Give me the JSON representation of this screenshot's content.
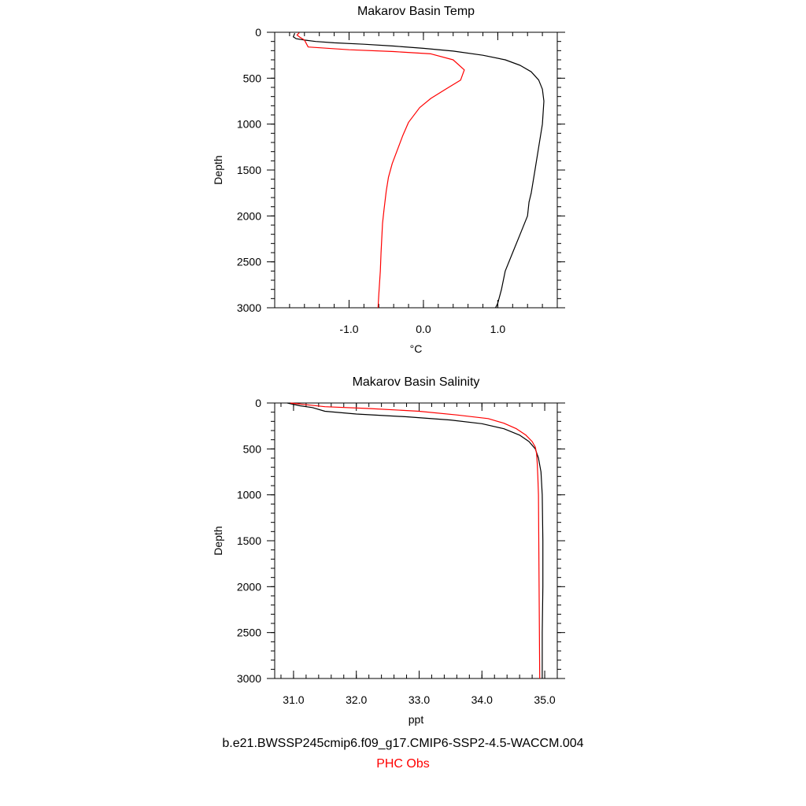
{
  "colors": {
    "model": "#000000",
    "obs": "#ff0000",
    "axis": "#000000"
  },
  "legend": {
    "model_label": "b.e21.BWSSP245cmip6.f09_g17.CMIP6-SSP2-4.5-WACCM.004",
    "obs_label": "PHC Obs"
  },
  "chart_data": [
    {
      "type": "line",
      "title": "Makarov Basin Temp",
      "xlabel": "°C",
      "ylabel": "Depth",
      "xlim": [
        -2.0,
        1.8
      ],
      "ylim": [
        3000,
        0
      ],
      "y_inverted": true,
      "xticks": [
        -1.0,
        0.0,
        1.0
      ],
      "xtick_labels": [
        "-1.0",
        "0.0",
        "1.0"
      ],
      "yticks": [
        0,
        500,
        1000,
        1500,
        2000,
        2500,
        3000
      ],
      "ytick_labels": [
        "0",
        "500",
        "1000",
        "1500",
        "2000",
        "2500",
        "3000"
      ],
      "grid": false,
      "series": [
        {
          "name": "b.e21.BWSSP245cmip6.f09_g17.CMIP6-SSP2-4.5-WACCM.004",
          "color": "#000000",
          "x": [
            -1.73,
            -1.75,
            -1.71,
            -1.6,
            -1.45,
            -1.2,
            -0.8,
            -0.4,
            0.0,
            0.4,
            0.8,
            1.1,
            1.3,
            1.45,
            1.55,
            1.6,
            1.62,
            1.6,
            1.55,
            1.5,
            1.45,
            1.42,
            1.4,
            1.3,
            1.2,
            1.1,
            1.05,
            1.0,
            0.97
          ],
          "y": [
            10,
            50,
            70,
            85,
            100,
            115,
            130,
            150,
            175,
            205,
            250,
            300,
            360,
            430,
            520,
            620,
            750,
            1000,
            1250,
            1500,
            1750,
            1850,
            2000,
            2200,
            2400,
            2600,
            2800,
            2950,
            3000
          ]
        },
        {
          "name": "PHC Obs",
          "color": "#ff0000",
          "x": [
            -1.67,
            -1.7,
            -1.66,
            -1.6,
            -1.55,
            -1.0,
            -0.4,
            0.1,
            0.4,
            0.55,
            0.5,
            0.3,
            0.1,
            -0.05,
            -0.2,
            -0.28,
            -0.35,
            -0.42,
            -0.47,
            -0.5,
            -0.53,
            -0.55,
            -0.57,
            -0.58,
            -0.6,
            -0.61
          ],
          "y": [
            5,
            30,
            55,
            85,
            160,
            190,
            210,
            235,
            300,
            410,
            520,
            620,
            720,
            820,
            980,
            1130,
            1280,
            1430,
            1580,
            1730,
            1930,
            2080,
            2400,
            2600,
            2850,
            3000
          ]
        }
      ]
    },
    {
      "type": "line",
      "title": "Makarov Basin Salinity",
      "xlabel": "ppt",
      "ylabel": "Depth",
      "xlim": [
        30.7,
        35.2
      ],
      "ylim": [
        3000,
        0
      ],
      "y_inverted": true,
      "xticks": [
        31.0,
        32.0,
        33.0,
        34.0,
        35.0
      ],
      "xtick_labels": [
        "31.0",
        "32.0",
        "33.0",
        "34.0",
        "35.0"
      ],
      "yticks": [
        0,
        500,
        1000,
        1500,
        2000,
        2500,
        3000
      ],
      "ytick_labels": [
        "0",
        "500",
        "1000",
        "1500",
        "2000",
        "2500",
        "3000"
      ],
      "grid": false,
      "series": [
        {
          "name": "b.e21.BWSSP245cmip6.f09_g17.CMIP6-SSP2-4.5-WACCM.004",
          "color": "#000000",
          "x": [
            30.9,
            31.1,
            31.3,
            31.5,
            32.0,
            32.8,
            33.5,
            34.0,
            34.35,
            34.6,
            34.75,
            34.85,
            34.9,
            34.94,
            34.96,
            34.97,
            34.97,
            34.96,
            34.96
          ],
          "y": [
            0,
            30,
            50,
            90,
            120,
            150,
            185,
            225,
            280,
            350,
            420,
            500,
            600,
            750,
            1000,
            1500,
            2000,
            2500,
            3000
          ]
        },
        {
          "name": "PHC Obs",
          "color": "#ff0000",
          "x": [
            30.95,
            31.5,
            32.2,
            33.0,
            33.6,
            34.1,
            34.35,
            34.55,
            34.7,
            34.8,
            34.85,
            34.87,
            34.88,
            34.89,
            34.9,
            34.91,
            34.92
          ],
          "y": [
            0,
            40,
            60,
            90,
            130,
            170,
            220,
            280,
            350,
            420,
            480,
            550,
            650,
            800,
            1000,
            2000,
            3000
          ]
        }
      ]
    }
  ]
}
